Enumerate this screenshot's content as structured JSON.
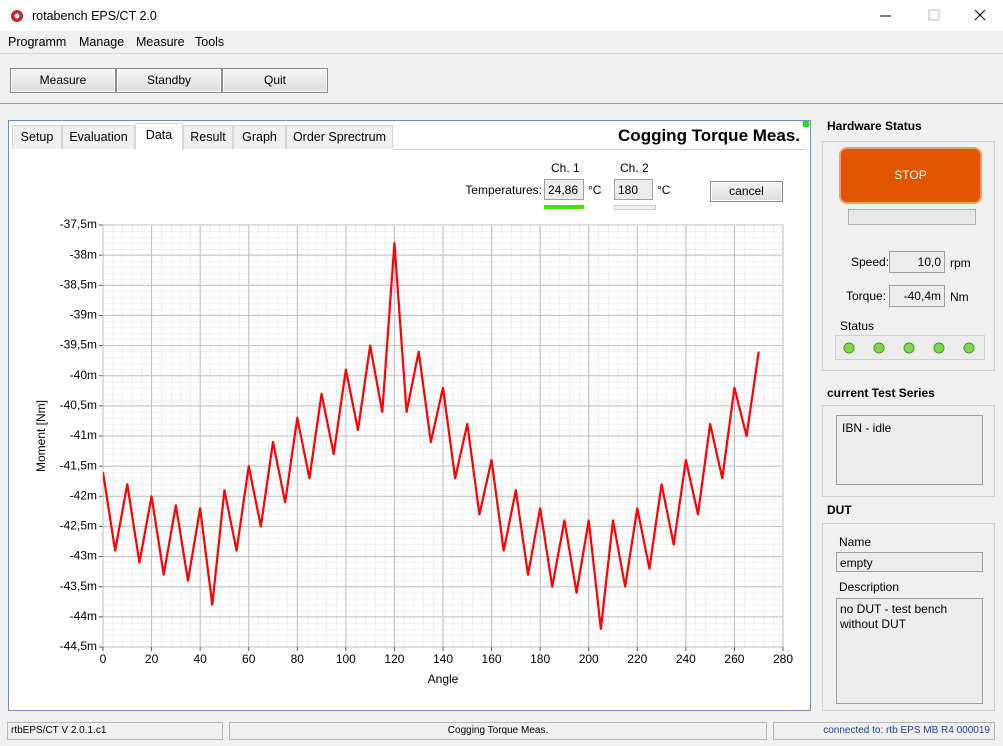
{
  "window": {
    "title": "rotabench EPS/CT 2.0"
  },
  "menu": [
    "Programm",
    "Manage",
    "Measure",
    "Tools"
  ],
  "toolbar": [
    "Measure",
    "Standby",
    "Quit"
  ],
  "tabs": [
    "Setup",
    "Evaluation",
    "Data",
    "Result",
    "Graph",
    "Order Sprectrum"
  ],
  "view_title": "Cogging Torque Meas.",
  "temperatures": {
    "label": "Temperatures:",
    "ch1_label": "Ch. 1",
    "ch1_value": "24,86",
    "ch1_unit": "°C",
    "ch2_label": "Ch. 2",
    "ch2_value": "180",
    "ch2_unit": "°C",
    "cancel": "cancel"
  },
  "chart_data": {
    "type": "line",
    "x_label": "Angle",
    "y_label": "Moment [Nm]",
    "xlim": [
      0,
      280
    ],
    "xticks": [
      0,
      20,
      40,
      60,
      80,
      100,
      120,
      140,
      160,
      180,
      200,
      220,
      240,
      260,
      280
    ],
    "ylim": [
      -44.5,
      -37.5
    ],
    "yticks": [
      {
        "value": -37.5,
        "label": "-37,5m"
      },
      {
        "value": -38,
        "label": "-38m"
      },
      {
        "value": -38.5,
        "label": "-38,5m"
      },
      {
        "value": -39,
        "label": "-39m"
      },
      {
        "value": -39.5,
        "label": "-39,5m"
      },
      {
        "value": -40,
        "label": "-40m"
      },
      {
        "value": -40.5,
        "label": "-40,5m"
      },
      {
        "value": -41,
        "label": "-41m"
      },
      {
        "value": -41.5,
        "label": "-41,5m"
      },
      {
        "value": -42,
        "label": "-42m"
      },
      {
        "value": -42.5,
        "label": "-42,5m"
      },
      {
        "value": -43,
        "label": "-43m"
      },
      {
        "value": -43.5,
        "label": "-43,5m"
      },
      {
        "value": -44,
        "label": "-44m"
      },
      {
        "value": -44.5,
        "label": "-44,5m"
      }
    ],
    "grid": true,
    "color": "#ff0000",
    "x": [
      0,
      5,
      10,
      15,
      20,
      25,
      30,
      35,
      40,
      45,
      50,
      55,
      60,
      65,
      70,
      75,
      80,
      85,
      90,
      95,
      100,
      105,
      110,
      115,
      120,
      125,
      130,
      135,
      140,
      145,
      150,
      155,
      160,
      165,
      170,
      175,
      180,
      185,
      190,
      195,
      200,
      205,
      210,
      215,
      220,
      225,
      230,
      235,
      240,
      245,
      250,
      255,
      260,
      265,
      270
    ],
    "values": [
      -41.6,
      -42.9,
      -41.8,
      -43.1,
      -42.0,
      -43.3,
      -42.15,
      -43.4,
      -42.2,
      -43.8,
      -41.9,
      -42.9,
      -41.5,
      -42.5,
      -41.1,
      -42.1,
      -40.7,
      -41.7,
      -40.3,
      -41.3,
      -39.9,
      -40.9,
      -39.5,
      -40.6,
      -37.8,
      -40.6,
      -39.6,
      -41.1,
      -40.2,
      -41.7,
      -40.8,
      -42.3,
      -41.4,
      -42.9,
      -41.9,
      -43.3,
      -42.2,
      -43.5,
      -42.4,
      -43.6,
      -42.4,
      -44.2,
      -42.4,
      -43.5,
      -42.2,
      -43.2,
      -41.8,
      -42.8,
      -41.4,
      -42.3,
      -40.8,
      -41.7,
      -40.2,
      -41.0,
      -39.6
    ]
  },
  "panel": {
    "hardware_title": "Hardware Status",
    "stop": "STOP",
    "speed_label": "Speed:",
    "speed_value": "10,0",
    "speed_unit": "rpm",
    "torque_label": "Torque:",
    "torque_value": "-40,4m",
    "torque_unit": "Nm",
    "status_label": "Status",
    "series_title": "current Test Series",
    "series_text": "IBN - idle",
    "dut_title": "DUT",
    "name_label": "Name",
    "name_value": "empty",
    "description_label": "Description",
    "description_value": "no DUT - test bench without DUT"
  },
  "status_bar": [
    "rtbEPS/CT V 2.0.1.c1",
    "Cogging Torque Meas.",
    "connected to: rtb EPS MB R4 000019"
  ]
}
